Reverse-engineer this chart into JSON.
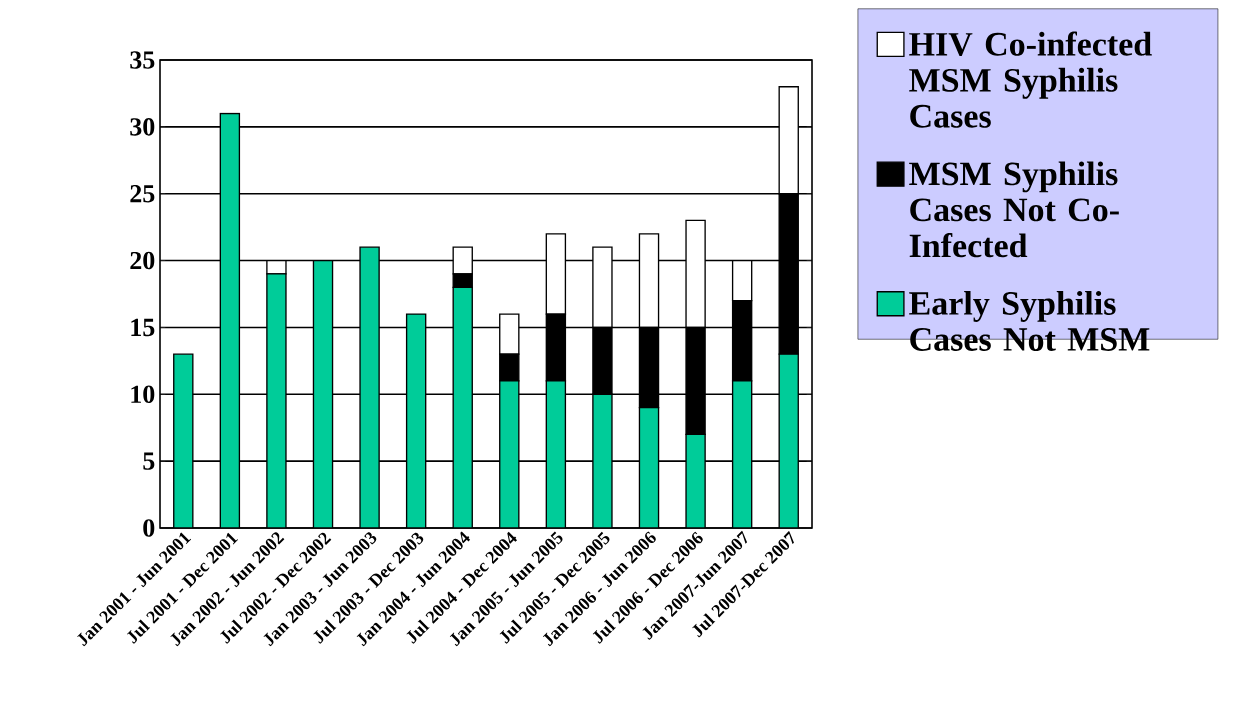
{
  "chart_data": {
    "type": "bar",
    "stacked": true,
    "categories": [
      "Jan 2001 - Jun 2001",
      "Jul 2001 - Dec 2001",
      "Jan 2002 - Jun 2002",
      "Jul 2002 - Dec 2002",
      "Jan 2003 - Jun 2003",
      "Jul 2003 - Dec 2003",
      "Jan 2004 - Jun 2004",
      "Jul 2004 - Dec 2004",
      "Jan 2005 - Jun 2005",
      "Jul 2005 - Dec 2005",
      "Jan 2006 - Jun 2006",
      "Jul 2006 - Dec 2006",
      "Jan 2007-Jun 2007",
      "Jul 2007-Dec 2007"
    ],
    "series": [
      {
        "name": "Early Syphilis Cases Not MSM",
        "color": "#00cc99",
        "values": [
          13,
          31,
          19,
          20,
          21,
          16,
          18,
          11,
          11,
          10,
          9,
          7,
          11,
          13
        ]
      },
      {
        "name": "MSM Syphilis Cases Not Co-Infected",
        "color": "#000000",
        "values": [
          0,
          0,
          0,
          0,
          0,
          0,
          1,
          2,
          5,
          5,
          6,
          8,
          6,
          12
        ]
      },
      {
        "name": "HIV Co-infected MSM Syphilis Cases",
        "color": "#ffffff",
        "values": [
          0,
          0,
          1,
          0,
          0,
          0,
          2,
          3,
          6,
          6,
          7,
          8,
          3,
          8
        ]
      }
    ],
    "ylim": [
      0,
      35
    ],
    "yticks": [
      0,
      5,
      10,
      15,
      20,
      25,
      30,
      35
    ],
    "grid": "y",
    "legend": "right"
  }
}
